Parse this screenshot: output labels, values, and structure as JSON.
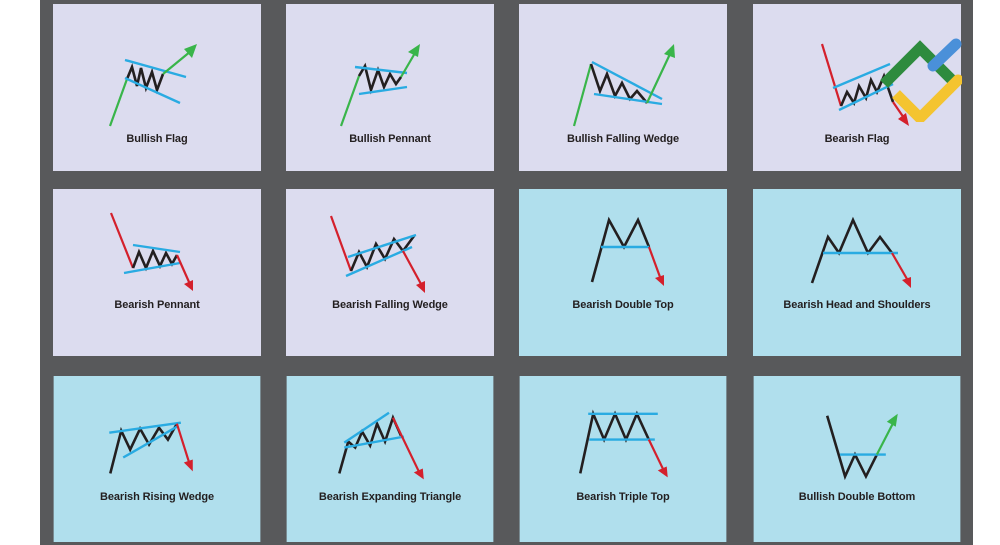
{
  "colors": {
    "frame": "#58595b",
    "panel_lavender": "#dcdcef",
    "panel_blue": "#b0dfed",
    "price_line": "#231f20",
    "trend_line": "#29abe2",
    "bullish": "#39b54a",
    "bearish": "#d4202c",
    "logo_green": "#2e8b3e",
    "logo_blue": "#4a90d9",
    "logo_yellow": "#f4c430"
  },
  "patterns": [
    {
      "label": "Bullish Flag",
      "bias": "bullish"
    },
    {
      "label": "Bullish Pennant",
      "bias": "bullish"
    },
    {
      "label": "Bullish Falling Wedge",
      "bias": "bullish"
    },
    {
      "label": "Bearish Flag",
      "bias": "bearish"
    },
    {
      "label": "Bearish Pennant",
      "bias": "bearish"
    },
    {
      "label": "Bearish Falling Wedge",
      "bias": "bearish"
    },
    {
      "label": "Bearish Double Top",
      "bias": "bearish"
    },
    {
      "label": "Bearish Head and Shoulders",
      "bias": "bearish"
    },
    {
      "label": "Bearish Rising Wedge",
      "bias": "bearish"
    },
    {
      "label": "Bearish Expanding Triangle",
      "bias": "bearish"
    },
    {
      "label": "Bearish Triple Top",
      "bias": "bearish"
    },
    {
      "label": "Bullish Double Bottom",
      "bias": "bullish"
    }
  ],
  "logo": {
    "icon": "chevron-logo-icon"
  }
}
